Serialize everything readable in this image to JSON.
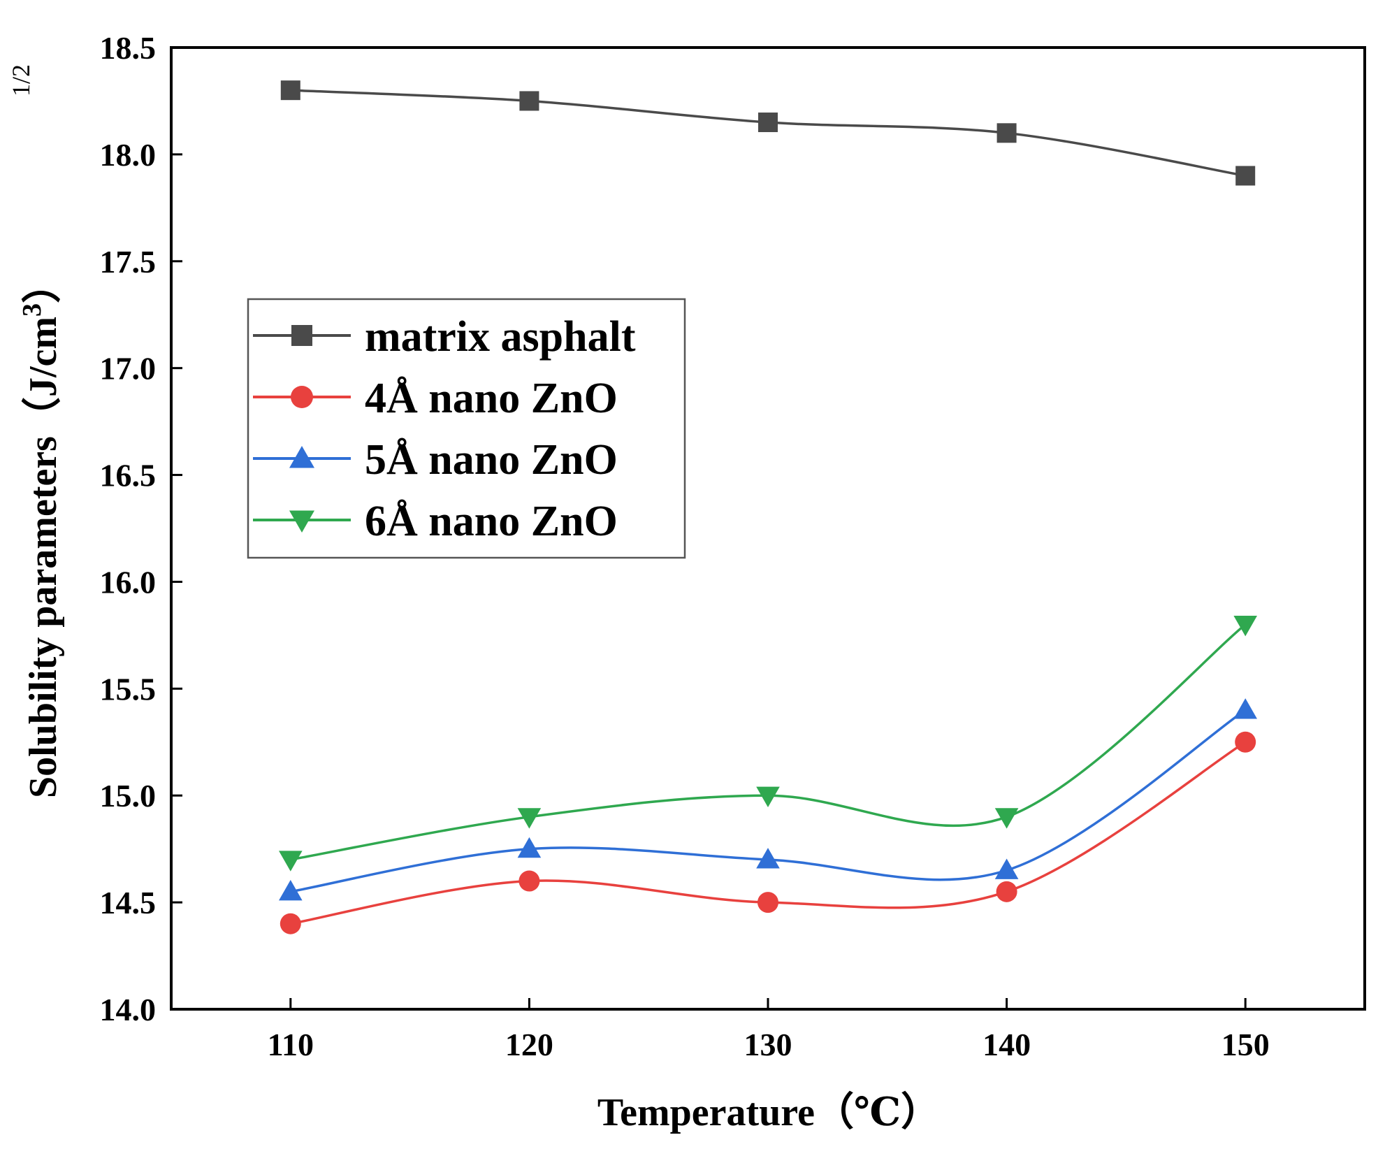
{
  "chart_data": {
    "type": "line",
    "title": "",
    "xlabel": "Temperature（℃）",
    "ylabel": "Solubility parameters（J/cm",
    "ylabel_superscript": "3",
    "ylabel_close": "）",
    "ylabel_exponent": "1/2",
    "x": [
      110,
      120,
      130,
      140,
      150
    ],
    "xlim": [
      105,
      155
    ],
    "ylim": [
      14.0,
      18.5
    ],
    "xticks": [
      110,
      120,
      130,
      140,
      150
    ],
    "xtick_labels": [
      "110",
      "120",
      "130",
      "140",
      "150"
    ],
    "yticks": [
      14.0,
      14.5,
      15.0,
      15.5,
      16.0,
      16.5,
      17.0,
      17.5,
      18.0,
      18.5
    ],
    "ytick_labels": [
      "14.0",
      "14.5",
      "15.0",
      "15.5",
      "16.0",
      "16.5",
      "17.0",
      "17.5",
      "18.0",
      "18.5"
    ],
    "grid": false,
    "legend_position": "upper-left",
    "series": [
      {
        "name": "matrix asphalt",
        "values": [
          18.3,
          18.25,
          18.15,
          18.1,
          17.9
        ],
        "color": "#4a4a4a",
        "marker": "square"
      },
      {
        "name": "4Å nano ZnO",
        "values": [
          14.4,
          14.6,
          14.5,
          14.55,
          15.25
        ],
        "color": "#e8413e",
        "marker": "circle"
      },
      {
        "name": "5Å nano ZnO",
        "values": [
          14.55,
          14.75,
          14.7,
          14.65,
          15.4
        ],
        "color": "#2f6fd6",
        "marker": "triangle-up"
      },
      {
        "name": "6Å nano ZnO",
        "values": [
          14.7,
          14.9,
          15.0,
          14.9,
          15.8
        ],
        "color": "#2fa84f",
        "marker": "triangle-down"
      }
    ]
  }
}
